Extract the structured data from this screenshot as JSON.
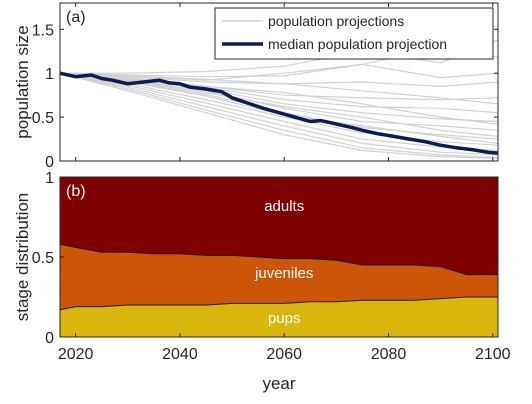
{
  "x_axis_label": "year",
  "chart_data": [
    {
      "type": "line",
      "panel_label": "(a)",
      "ylabel": "population size",
      "xlim": [
        2017,
        2101
      ],
      "ylim": [
        0,
        1.8
      ],
      "x_ticks": [
        2020,
        2040,
        2060,
        2080,
        2100
      ],
      "y_ticks": [
        0,
        0.5,
        1,
        1.5
      ],
      "y_tick_labels": [
        "0",
        "0.5",
        "1",
        "1.5"
      ],
      "legend_position": "top-right",
      "legend": [
        {
          "label": "population projections",
          "color": "#c8ccc8",
          "width": 1
        },
        {
          "label": "median population projection",
          "color": "#0b1b55",
          "width": 3
        }
      ],
      "projections_color": "#cfd3cf",
      "median_color": "#0b1b55",
      "series": [
        {
          "name": "median population projection",
          "x": [
            2017,
            2020,
            2023,
            2025,
            2027,
            2030,
            2033,
            2036,
            2038,
            2040,
            2042,
            2045,
            2048,
            2050,
            2053,
            2056,
            2059,
            2062,
            2065,
            2067,
            2070,
            2073,
            2075,
            2078,
            2081,
            2084,
            2087,
            2090,
            2093,
            2096,
            2099,
            2101
          ],
          "y": [
            1.0,
            0.96,
            0.98,
            0.94,
            0.92,
            0.88,
            0.9,
            0.92,
            0.89,
            0.88,
            0.84,
            0.82,
            0.79,
            0.72,
            0.66,
            0.6,
            0.55,
            0.5,
            0.45,
            0.46,
            0.42,
            0.38,
            0.35,
            0.31,
            0.28,
            0.25,
            0.22,
            0.18,
            0.15,
            0.13,
            0.1,
            0.09
          ]
        }
      ],
      "projections": [
        {
          "x": [
            2017,
            2030,
            2045,
            2060,
            2075,
            2090,
            2101
          ],
          "y": [
            1.0,
            0.98,
            0.96,
            0.97,
            1.1,
            1.3,
            1.18
          ]
        },
        {
          "x": [
            2017,
            2030,
            2045,
            2060,
            2075,
            2090,
            2101
          ],
          "y": [
            1.0,
            1.0,
            1.02,
            1.08,
            1.25,
            1.12,
            1.38
          ]
        },
        {
          "x": [
            2017,
            2030,
            2045,
            2060,
            2075,
            2090,
            2101
          ],
          "y": [
            1.0,
            0.97,
            0.92,
            1.0,
            1.1,
            0.95,
            1.0
          ]
        },
        {
          "x": [
            2017,
            2030,
            2045,
            2060,
            2075,
            2090,
            2101
          ],
          "y": [
            1.0,
            0.96,
            0.9,
            0.88,
            0.9,
            0.85,
            0.9
          ]
        },
        {
          "x": [
            2017,
            2030,
            2045,
            2060,
            2075,
            2090,
            2101
          ],
          "y": [
            1.0,
            0.95,
            0.85,
            0.75,
            0.72,
            0.7,
            0.72
          ]
        },
        {
          "x": [
            2017,
            2030,
            2045,
            2060,
            2075,
            2090,
            2101
          ],
          "y": [
            1.0,
            0.94,
            0.84,
            0.7,
            0.62,
            0.6,
            0.55
          ]
        },
        {
          "x": [
            2017,
            2030,
            2045,
            2060,
            2075,
            2090,
            2101
          ],
          "y": [
            1.0,
            0.93,
            0.82,
            0.65,
            0.55,
            0.48,
            0.45
          ]
        },
        {
          "x": [
            2017,
            2030,
            2045,
            2060,
            2075,
            2090,
            2101
          ],
          "y": [
            1.0,
            0.92,
            0.8,
            0.6,
            0.45,
            0.4,
            0.35
          ]
        },
        {
          "x": [
            2017,
            2030,
            2045,
            2060,
            2075,
            2090,
            2101
          ],
          "y": [
            1.0,
            0.9,
            0.76,
            0.55,
            0.38,
            0.3,
            0.25
          ]
        },
        {
          "x": [
            2017,
            2030,
            2045,
            2060,
            2075,
            2090,
            2101
          ],
          "y": [
            1.0,
            0.88,
            0.7,
            0.5,
            0.32,
            0.22,
            0.18
          ]
        },
        {
          "x": [
            2017,
            2030,
            2045,
            2060,
            2075,
            2090,
            2101
          ],
          "y": [
            1.0,
            0.86,
            0.66,
            0.45,
            0.25,
            0.16,
            0.12
          ]
        },
        {
          "x": [
            2017,
            2030,
            2045,
            2060,
            2075,
            2090,
            2101
          ],
          "y": [
            1.0,
            0.84,
            0.62,
            0.4,
            0.2,
            0.1,
            0.07
          ]
        },
        {
          "x": [
            2017,
            2030,
            2045,
            2060,
            2075,
            2090,
            2101
          ],
          "y": [
            1.0,
            0.82,
            0.58,
            0.35,
            0.15,
            0.07,
            0.04
          ]
        },
        {
          "x": [
            2017,
            2030,
            2045,
            2060,
            2075,
            2090,
            2101
          ],
          "y": [
            1.0,
            0.8,
            0.55,
            0.3,
            0.12,
            0.05,
            0.03
          ]
        },
        {
          "x": [
            2017,
            2030,
            2045,
            2060,
            2075,
            2090,
            2101
          ],
          "y": [
            1.0,
            0.9,
            0.74,
            0.52,
            0.4,
            0.28,
            0.2
          ]
        },
        {
          "x": [
            2017,
            2030,
            2045,
            2060,
            2075,
            2090,
            2101
          ],
          "y": [
            1.0,
            0.93,
            0.85,
            0.78,
            0.65,
            0.5,
            0.42
          ]
        },
        {
          "x": [
            2017,
            2030,
            2045,
            2060,
            2075,
            2090,
            2101
          ],
          "y": [
            1.0,
            0.97,
            0.93,
            0.88,
            0.8,
            0.72,
            0.65
          ]
        },
        {
          "x": [
            2017,
            2030,
            2045,
            2060,
            2075,
            2090,
            2101
          ],
          "y": [
            1.0,
            0.91,
            0.78,
            0.62,
            0.5,
            0.35,
            0.28
          ]
        }
      ]
    },
    {
      "type": "area",
      "panel_label": "(b)",
      "ylabel": "stage distribution",
      "xlim": [
        2017,
        2101
      ],
      "ylim": [
        0,
        1
      ],
      "x_ticks": [
        2020,
        2040,
        2060,
        2080,
        2100
      ],
      "y_ticks": [
        0,
        0.5,
        1
      ],
      "y_tick_labels": [
        "0",
        "0.5",
        "1"
      ],
      "stacked": true,
      "x": [
        2017,
        2020,
        2025,
        2030,
        2035,
        2040,
        2045,
        2050,
        2055,
        2060,
        2065,
        2070,
        2075,
        2080,
        2085,
        2090,
        2095,
        2101
      ],
      "series": [
        {
          "name": "pups",
          "color": "#d9b60b",
          "values": [
            0.17,
            0.19,
            0.19,
            0.2,
            0.2,
            0.2,
            0.2,
            0.21,
            0.21,
            0.21,
            0.22,
            0.22,
            0.23,
            0.23,
            0.23,
            0.24,
            0.25,
            0.25
          ]
        },
        {
          "name": "juveniles",
          "color": "#cc5508",
          "values": [
            0.41,
            0.37,
            0.34,
            0.33,
            0.32,
            0.32,
            0.31,
            0.3,
            0.29,
            0.28,
            0.27,
            0.26,
            0.22,
            0.22,
            0.22,
            0.2,
            0.14,
            0.14
          ]
        },
        {
          "name": "adults",
          "color": "#7f0000",
          "values": [
            0.42,
            0.44,
            0.47,
            0.47,
            0.48,
            0.48,
            0.49,
            0.49,
            0.5,
            0.51,
            0.51,
            0.52,
            0.55,
            0.55,
            0.55,
            0.56,
            0.61,
            0.61
          ]
        }
      ],
      "stage_labels": [
        {
          "text": "adults",
          "x": 2060,
          "y": 0.82
        },
        {
          "text": "juveniles",
          "x": 2060,
          "y": 0.4
        },
        {
          "text": "pups",
          "x": 2060,
          "y": 0.12
        }
      ]
    }
  ]
}
